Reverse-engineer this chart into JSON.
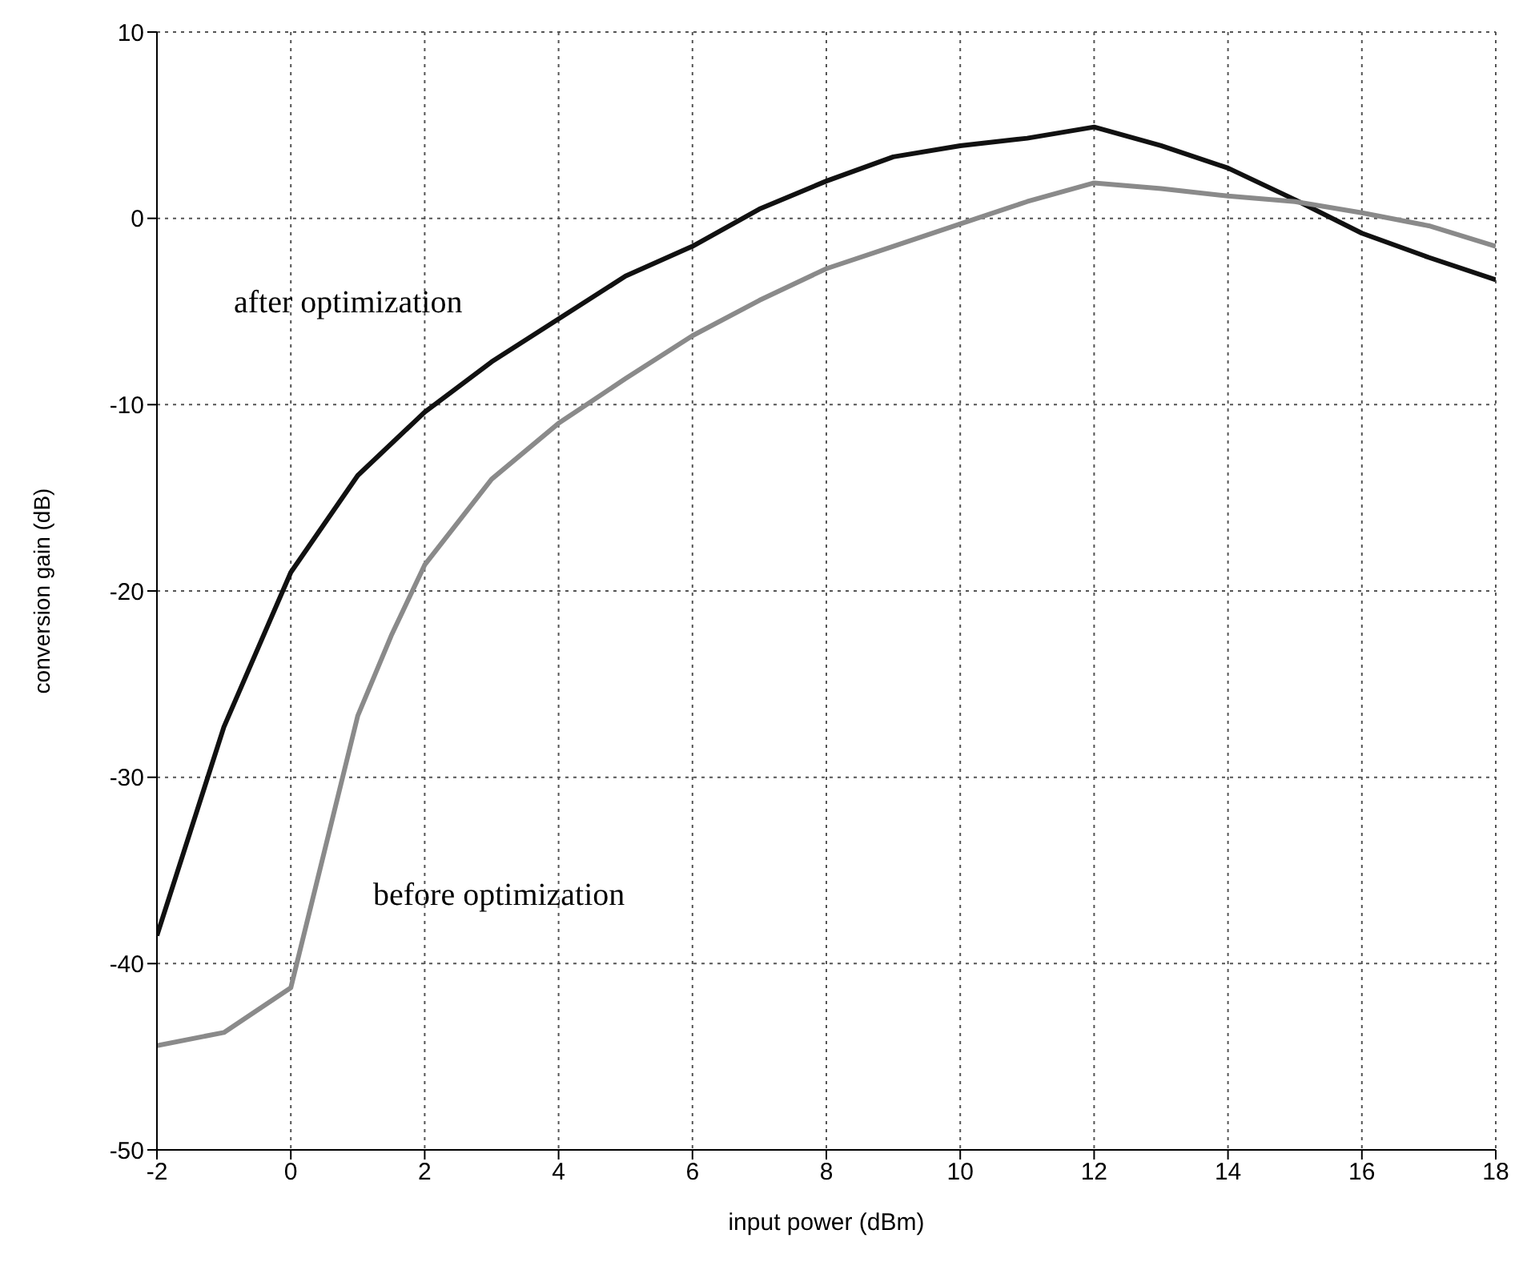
{
  "chart_data": {
    "type": "line",
    "xlabel": "input power (dBm)",
    "ylabel": "conversion gain (dB)",
    "xlim": [
      -2,
      18
    ],
    "xticks": [
      -2,
      0,
      2,
      4,
      6,
      8,
      10,
      12,
      14,
      16,
      18
    ],
    "ylim": [
      -50,
      10
    ],
    "yticks": [
      -50,
      -40,
      -30,
      -20,
      -10,
      0,
      10
    ],
    "grid": true,
    "marker": "none",
    "line_style": "solid",
    "series": [
      {
        "color": "#111111",
        "x": [
          -2,
          -1,
          0,
          1,
          2,
          3,
          4,
          5,
          6,
          7,
          8,
          9,
          10,
          11,
          12,
          13,
          14,
          15,
          16,
          17,
          18
        ],
        "values": [
          -38.5,
          -27.3,
          -19,
          -13.8,
          -10.4,
          -7.7,
          -5.4,
          -3.1,
          -1.5,
          0.5,
          2,
          3.3,
          3.9,
          4.3,
          4.9,
          3.9,
          2.7,
          1,
          -0.8,
          -2.1,
          -3.3
        ]
      },
      {
        "color": "#8a8a8a",
        "x": [
          -2,
          -1,
          0,
          0.5,
          1,
          1.5,
          2,
          3,
          4,
          5,
          6,
          7,
          8,
          9,
          10,
          11,
          12,
          13,
          14,
          15,
          16,
          17,
          18
        ],
        "values": [
          -44.4,
          -43.7,
          -41.3,
          -34,
          -26.7,
          -22.4,
          -18.6,
          -14,
          -11,
          -8.6,
          -6.3,
          -4.4,
          -2.7,
          -1.5,
          -0.3,
          0.9,
          1.9,
          1.6,
          1.2,
          0.9,
          0.3,
          -0.4,
          -1.5
        ]
      }
    ],
    "annotations": [
      "after optimization",
      "before optimization"
    ]
  }
}
